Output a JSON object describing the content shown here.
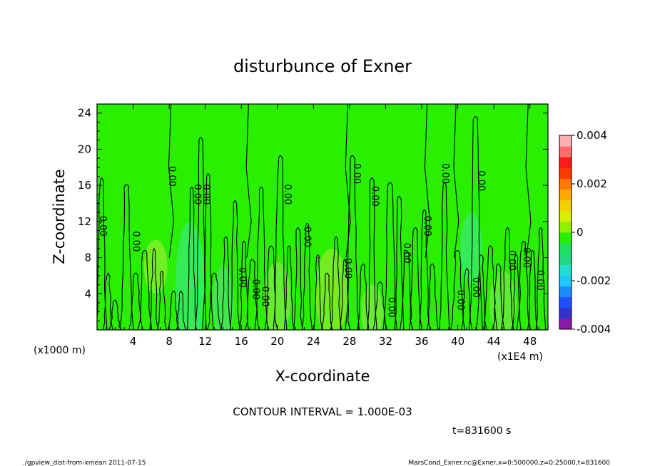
{
  "chart_data": {
    "type": "contour",
    "title": "disturbunce of Exner",
    "xlabel": "X-coordinate",
    "ylabel": "Z-coordinate",
    "x_unit_label": "(x1E4 m)",
    "y_unit_label": "(x1000 m)",
    "x_ticks": [
      "4",
      "8",
      "12",
      "16",
      "20",
      "24",
      "28",
      "32",
      "36",
      "40",
      "44",
      "48"
    ],
    "y_ticks": [
      "4",
      "8",
      "12",
      "16",
      "20",
      "24"
    ],
    "xlim": [
      0,
      50
    ],
    "ylim": [
      0,
      25
    ],
    "colorbar": {
      "min": -0.004,
      "max": 0.004,
      "tick_labels": [
        "0.004",
        "0.002",
        "0",
        "-0.002",
        "-0.004"
      ],
      "tick_values": [
        0.004,
        0.002,
        0,
        -0.002,
        -0.004
      ],
      "colors": [
        "#8b1aa8",
        "#3333cc",
        "#1f4fff",
        "#1a8cff",
        "#1fc8ff",
        "#1fe0d0",
        "#22d880",
        "#20e060",
        "#28f000",
        "#90f000",
        "#d8f000",
        "#f0d000",
        "#ffa800",
        "#ff7a00",
        "#ff3a00",
        "#ff1a1a",
        "#ff6b6b",
        "#ffb0b0"
      ]
    },
    "contour_label": "0.00",
    "contour_label_x": [
      0.3,
      4.0,
      8.0,
      10.8,
      11.8,
      15.8,
      17.3,
      18.3,
      20.8,
      23.0,
      27.5,
      28.5,
      30.5,
      32.3,
      34.0,
      36.3,
      38.3,
      40.0,
      41.7,
      42.3,
      45.7,
      47.3,
      48.8
    ],
    "contour_label_z": [
      11.5,
      9.8,
      17.0,
      15.0,
      15.0,
      5.8,
      4.5,
      3.7,
      15.0,
      10.3,
      6.8,
      17.3,
      14.8,
      2.5,
      8.5,
      11.5,
      17.3,
      3.3,
      4.7,
      16.5,
      7.7,
      8.0,
      5.5
    ],
    "contour_interval_text": "CONTOUR INTERVAL = 1.000E-03",
    "time_text": "t=831600 s"
  },
  "footer": {
    "left": "./gpview_dist-from-xmean  2011-07-15",
    "right": "MarsCond_Exner.nc@Exner,x=0:500000,z=0:25000,t=831600"
  }
}
